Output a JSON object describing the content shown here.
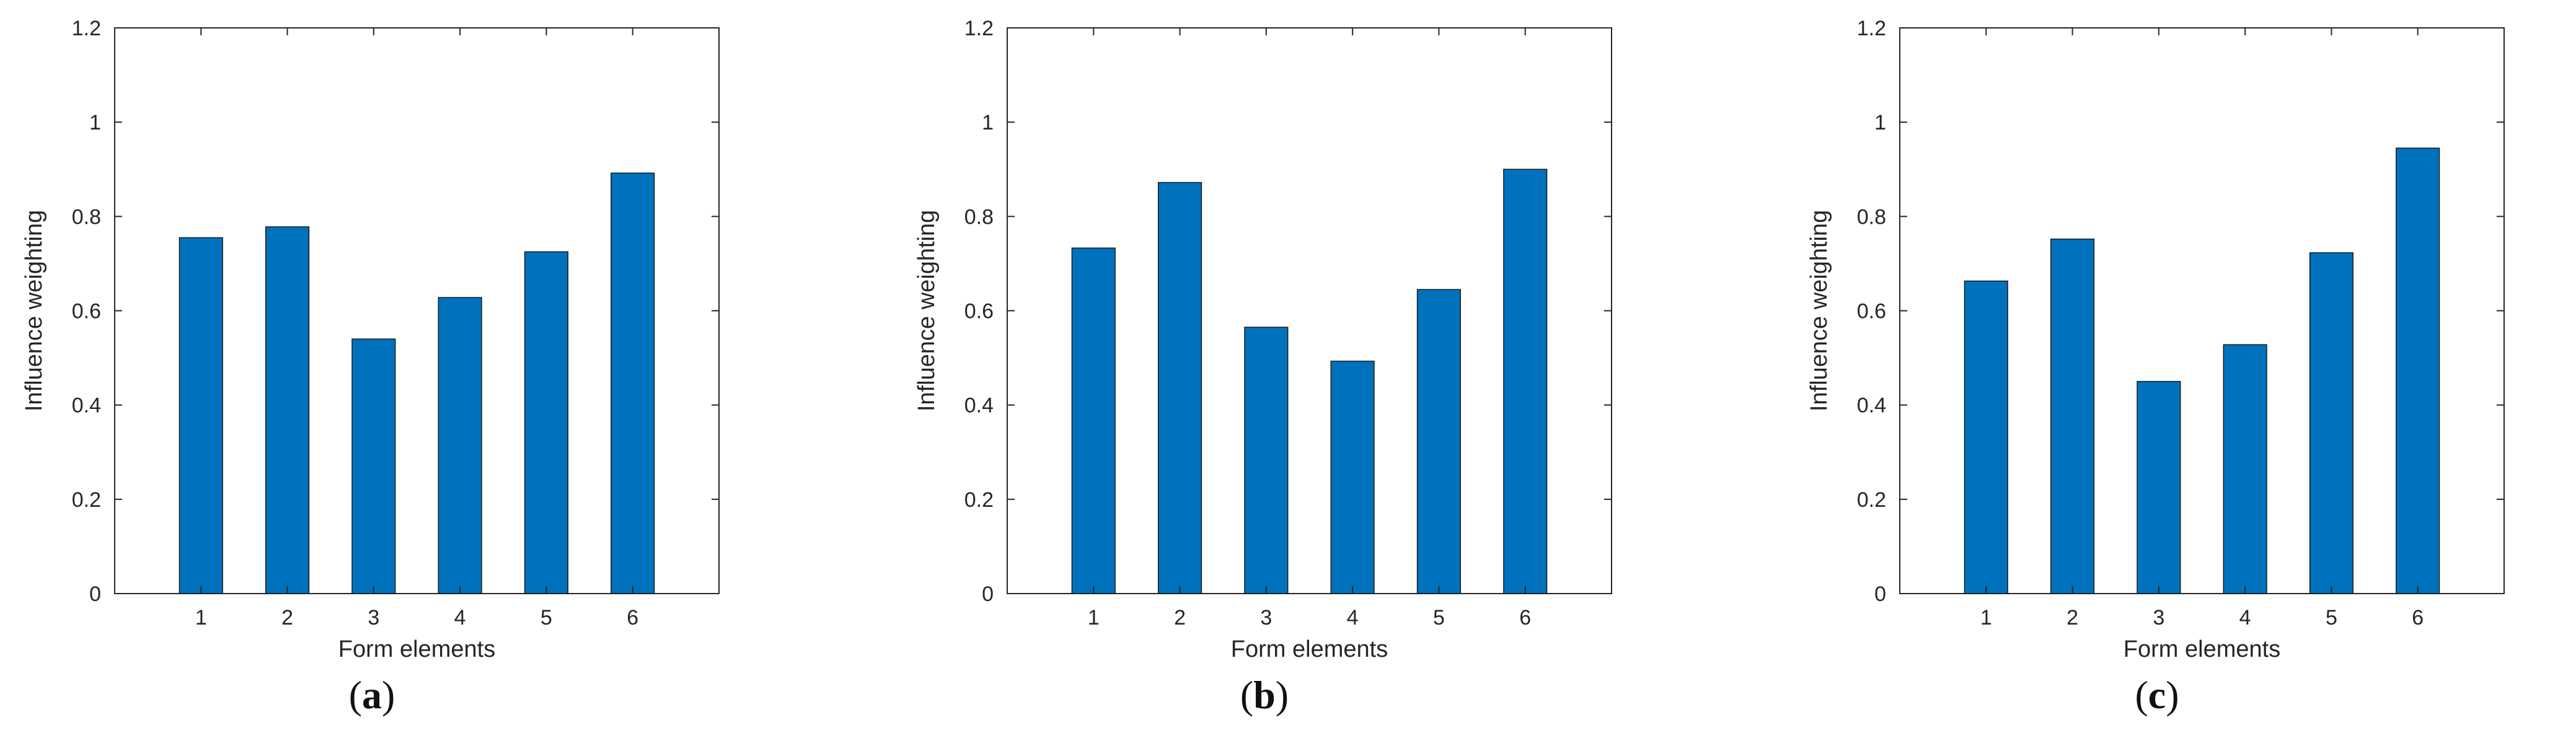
{
  "chart_data": [
    {
      "type": "bar",
      "categories": [
        "1",
        "2",
        "3",
        "4",
        "5",
        "6"
      ],
      "values": [
        0.755,
        0.778,
        0.54,
        0.628,
        0.725,
        0.892
      ],
      "xlabel": "Form elements",
      "ylabel": "Influence weighting",
      "ylim": [
        0,
        1.2
      ],
      "yticks": [
        "0",
        "0.2",
        "0.4",
        "0.6",
        "0.8",
        "1",
        "1.2"
      ],
      "caption": "a",
      "bar_color": "#0072BD",
      "grid": false
    },
    {
      "type": "bar",
      "categories": [
        "1",
        "2",
        "3",
        "4",
        "5",
        "6"
      ],
      "values": [
        0.733,
        0.872,
        0.565,
        0.493,
        0.645,
        0.9
      ],
      "xlabel": "Form elements",
      "ylabel": "Influence weighting",
      "ylim": [
        0,
        1.2
      ],
      "yticks": [
        "0",
        "0.2",
        "0.4",
        "0.6",
        "0.8",
        "1",
        "1.2"
      ],
      "caption": "b",
      "bar_color": "#0072BD",
      "grid": false
    },
    {
      "type": "bar",
      "categories": [
        "1",
        "2",
        "3",
        "4",
        "5",
        "6"
      ],
      "values": [
        0.663,
        0.752,
        0.45,
        0.528,
        0.723,
        0.945
      ],
      "xlabel": "Form elements",
      "ylabel": "Influence weighting",
      "ylim": [
        0,
        1.2
      ],
      "yticks": [
        "0",
        "0.2",
        "0.4",
        "0.6",
        "0.8",
        "1",
        "1.2"
      ],
      "caption": "c",
      "bar_color": "#0072BD",
      "grid": false
    }
  ]
}
